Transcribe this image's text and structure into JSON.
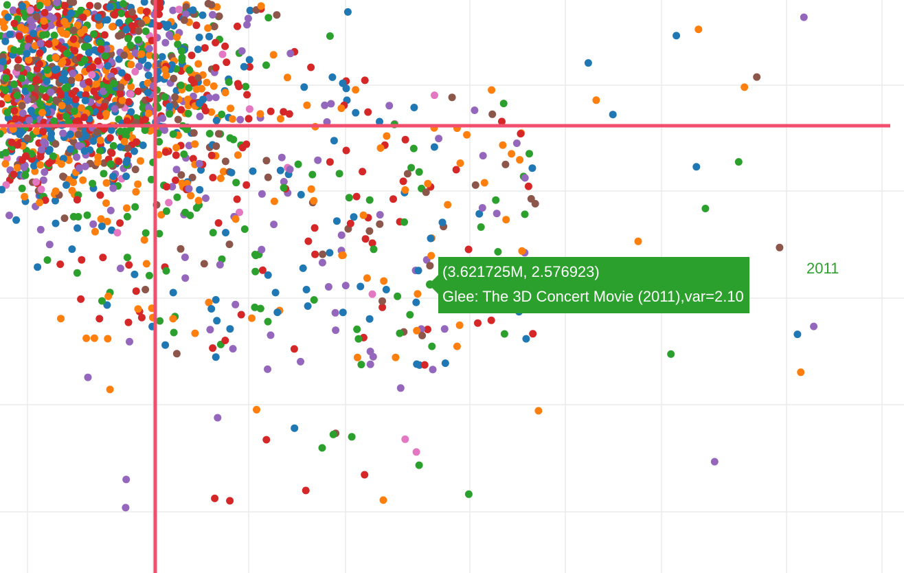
{
  "chart_data": {
    "type": "scatter",
    "series_colors": [
      "#1f77b4",
      "#ff7f0e",
      "#2ca02c",
      "#d62728",
      "#9467bd",
      "#8c564b",
      "#e377c2"
    ],
    "grid": true,
    "spike_lines": {
      "color": "#f0506e"
    },
    "hover": {
      "point": "(3.621725M, 2.576923)",
      "text": "Glee: The 3D Concert Movie (2011),var=2.10",
      "trace_name": "2011",
      "color": "#2ca02c"
    }
  }
}
